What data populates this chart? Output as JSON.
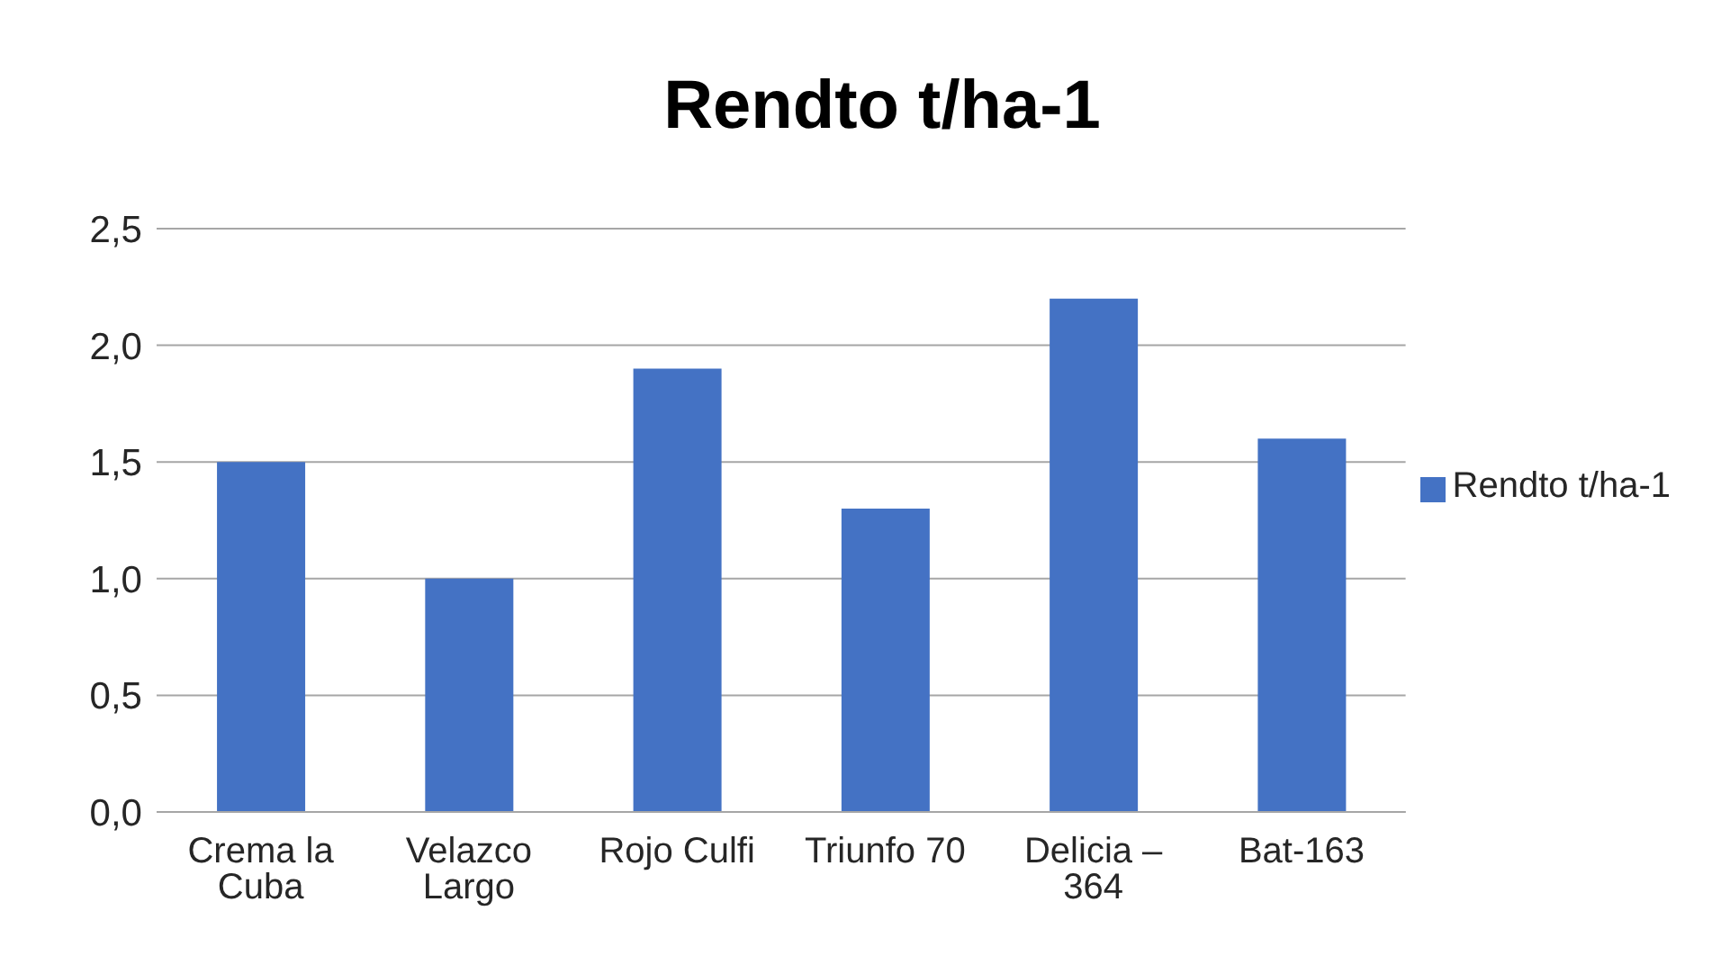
{
  "chart_data": {
    "type": "bar",
    "title": "Rendto t/ha-1",
    "categories": [
      "Crema la Cuba",
      "Velazco Largo",
      "Rojo Culfi",
      "Triunfo 70",
      "Delicia – 364",
      "Bat-163"
    ],
    "series": [
      {
        "name": "Rendto t/ha-1",
        "color": "#4472c4",
        "values": [
          1.5,
          1.0,
          1.9,
          1.3,
          2.2,
          1.6
        ]
      }
    ],
    "ylim": [
      0,
      2.5
    ],
    "yticks": [
      {
        "value": 0,
        "label": "0,0"
      },
      {
        "value": 0.5,
        "label": "0,5"
      },
      {
        "value": 1,
        "label": "1,0"
      },
      {
        "value": 1.5,
        "label": "1,5"
      },
      {
        "value": 2,
        "label": "2,0"
      },
      {
        "value": 2.5,
        "label": "2,5"
      }
    ],
    "grid": "y",
    "legend": "right"
  }
}
